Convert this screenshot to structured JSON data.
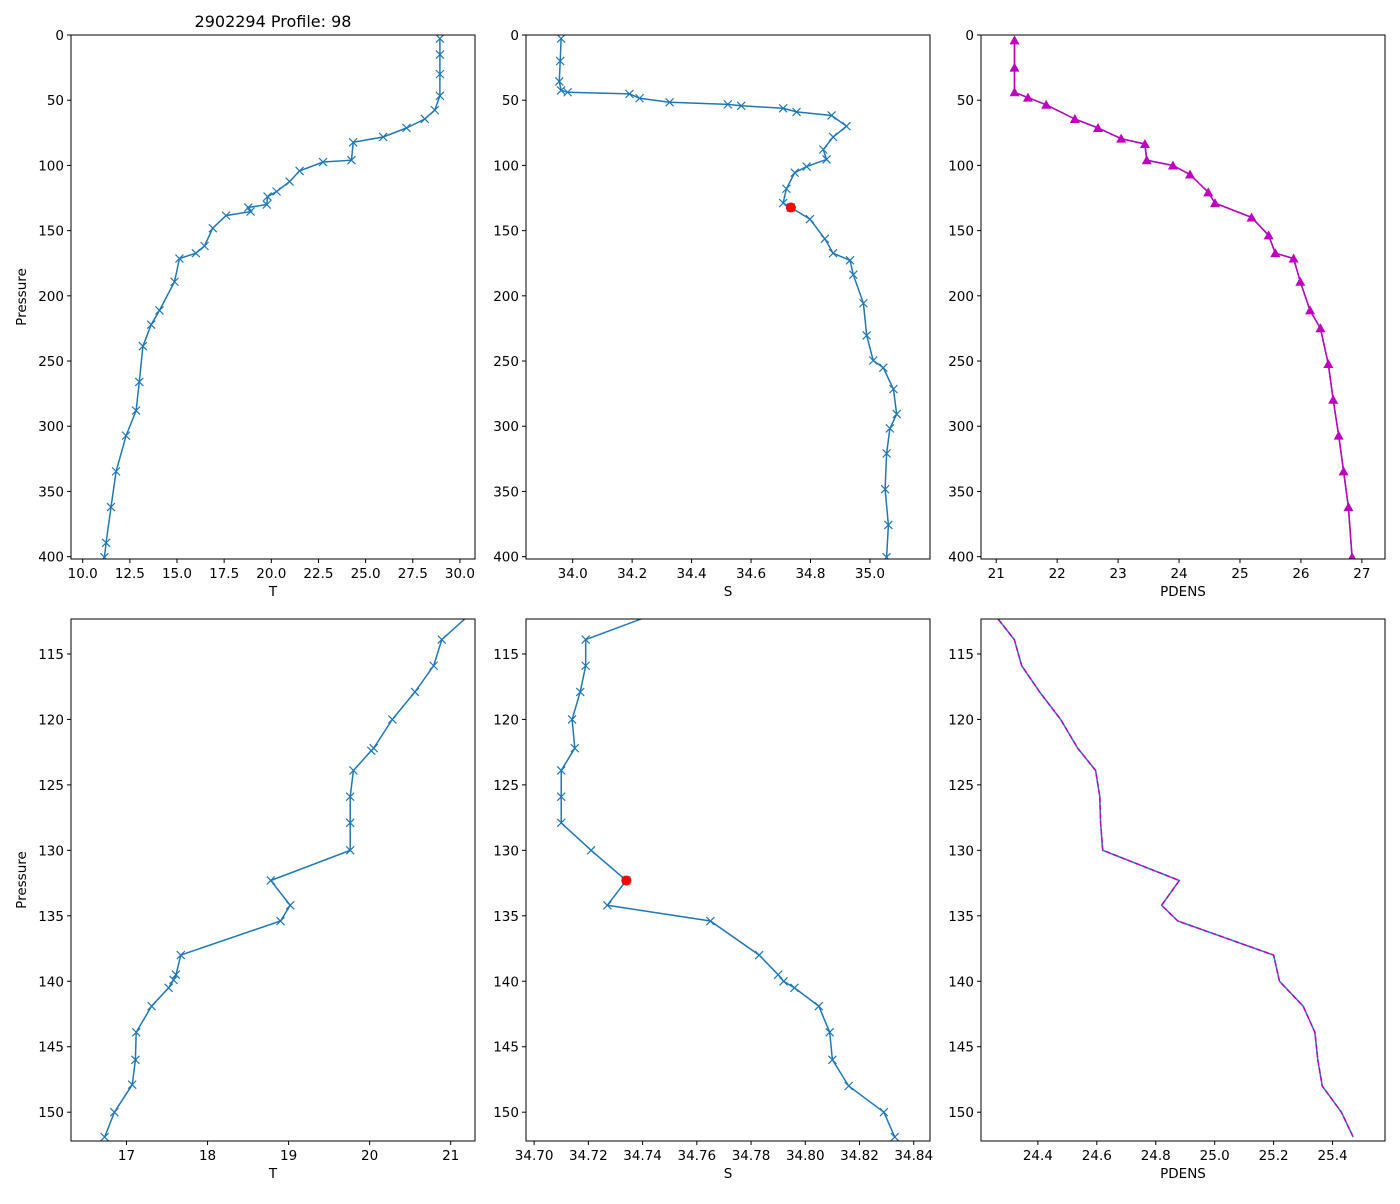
{
  "figure_title": "2902294 Profile: 98",
  "chart_data": [
    {
      "type": "line",
      "title": "2902294 Profile: 98",
      "xlabel": "T",
      "ylabel": "Pressure",
      "xlim": [
        9.38,
        30.8
      ],
      "ylim": [
        0,
        401.8
      ],
      "y_inverted": true,
      "xticks": [
        10,
        12.5,
        15,
        17.5,
        20,
        22.5,
        25,
        27.5,
        30
      ],
      "xtick_labels": [
        "10.0",
        "12.5",
        "15.0",
        "17.5",
        "20.0",
        "22.5",
        "25.0",
        "27.5",
        "30.0"
      ],
      "yticks": [
        0,
        50,
        100,
        150,
        200,
        250,
        300,
        350,
        400
      ],
      "ytick_labels": [
        "0",
        "50",
        "100",
        "150",
        "200",
        "250",
        "300",
        "350",
        "400"
      ],
      "series": [
        {
          "name": "T",
          "color": "#1f77b4",
          "marker": "x",
          "linestyle": "solid",
          "x": [
            28.94,
            28.94,
            28.94,
            28.94,
            28.67,
            28.14,
            27.17,
            25.93,
            24.34,
            24.25,
            22.74,
            21.5,
            20.97,
            20.28,
            19.8,
            19.76,
            18.78,
            18.9,
            17.6,
            16.9,
            16.46,
            16.0,
            15.13,
            14.87,
            14.07,
            13.63,
            13.19,
            13.0,
            12.83,
            12.3,
            11.77,
            11.5,
            11.24,
            11.15
          ],
          "y": [
            2.7,
            15,
            30,
            46.6,
            57.6,
            64.4,
            71.3,
            78.2,
            82.3,
            96,
            97.4,
            104.2,
            112.4,
            120,
            123.9,
            130,
            132.3,
            135.4,
            138.5,
            148.1,
            161.8,
            167.3,
            171.4,
            189.2,
            211.2,
            222.1,
            238.6,
            266,
            288,
            307.2,
            334.6,
            362,
            389.4,
            400.4
          ]
        }
      ]
    },
    {
      "type": "line",
      "title": "",
      "xlabel": "S",
      "ylabel": "",
      "xlim": [
        33.843,
        35.202
      ],
      "ylim": [
        0,
        401.8
      ],
      "y_inverted": true,
      "xticks": [
        34.0,
        34.2,
        34.4,
        34.6,
        34.8,
        35.0
      ],
      "xtick_labels": [
        "34.0",
        "34.2",
        "34.4",
        "34.6",
        "34.8",
        "35.0"
      ],
      "yticks": [
        0,
        50,
        100,
        150,
        200,
        250,
        300,
        350,
        400
      ],
      "ytick_labels": [
        "0",
        "50",
        "100",
        "150",
        "200",
        "250",
        "300",
        "350",
        "400"
      ],
      "series": [
        {
          "name": "S",
          "color": "#1f77b4",
          "marker": "x",
          "linestyle": "solid",
          "x": [
            33.961,
            33.958,
            33.955,
            33.961,
            33.983,
            34.191,
            34.225,
            34.326,
            34.522,
            34.567,
            34.708,
            34.753,
            34.871,
            34.921,
            34.876,
            34.843,
            34.854,
            34.787,
            34.747,
            34.719,
            34.708,
            34.734,
            34.798,
            34.848,
            34.876,
            34.933,
            34.944,
            34.978,
            34.989,
            35.011,
            35.045,
            35.079,
            35.09,
            35.067,
            35.056,
            35.051,
            35.062,
            35.056
          ],
          "y": [
            2.7,
            20,
            35.6,
            42.5,
            43.9,
            45.2,
            48.5,
            51.6,
            53.2,
            54.3,
            56.2,
            59,
            61.7,
            69.9,
            78.2,
            87.8,
            95.4,
            100.9,
            105.6,
            117.9,
            128.9,
            132.3,
            141.2,
            156.3,
            167.3,
            172.8,
            183.8,
            205.7,
            230.4,
            249.6,
            255.1,
            271.5,
            290.7,
            301.7,
            320.9,
            348.3,
            375.7,
            400.4
          ]
        }
      ],
      "highlight": {
        "x": 34.734,
        "y": 132.3,
        "color": "#ff0000"
      }
    },
    {
      "type": "line",
      "title": "",
      "xlabel": "PDENS",
      "ylabel": "",
      "xlim": [
        20.75,
        27.38
      ],
      "ylim": [
        0,
        401.8
      ],
      "y_inverted": true,
      "xticks": [
        21,
        22,
        23,
        24,
        25,
        26,
        27
      ],
      "xtick_labels": [
        "21",
        "22",
        "23",
        "24",
        "25",
        "26",
        "27"
      ],
      "yticks": [
        0,
        50,
        100,
        150,
        200,
        250,
        300,
        350,
        400
      ],
      "ytick_labels": [
        "0",
        "50",
        "100",
        "150",
        "200",
        "250",
        "300",
        "350",
        "400"
      ],
      "series": [
        {
          "name": "PDENS",
          "color": "#1f77b4",
          "marker": "none",
          "linestyle": "solid",
          "x": [
            21.3,
            21.3,
            21.3,
            21.52,
            21.82,
            22.29,
            22.67,
            23.05,
            23.44,
            23.47,
            23.9,
            24.18,
            24.48,
            24.59,
            25.19,
            25.47,
            25.58,
            25.88,
            25.99,
            26.15,
            26.32,
            26.45,
            26.53,
            26.62,
            26.7,
            26.78,
            26.84
          ],
          "y": [
            4.1,
            25,
            43.9,
            48,
            53.5,
            64.4,
            71.3,
            79.5,
            83.6,
            96,
            100.1,
            107,
            120.7,
            128.9,
            139.9,
            153.6,
            167.3,
            171.4,
            189.2,
            211.2,
            224.9,
            252.3,
            279.7,
            307.2,
            334.6,
            362,
            400.4
          ]
        },
        {
          "name": "PDENS markers",
          "color": "#bf00bf",
          "marker": "^",
          "linestyle": "solid",
          "x": [
            21.3,
            21.3,
            21.3,
            21.52,
            21.82,
            22.29,
            22.67,
            23.05,
            23.44,
            23.47,
            23.9,
            24.18,
            24.48,
            24.59,
            25.19,
            25.47,
            25.58,
            25.88,
            25.99,
            26.15,
            26.32,
            26.45,
            26.53,
            26.62,
            26.7,
            26.78,
            26.84
          ],
          "y": [
            4.1,
            25,
            43.9,
            48,
            53.5,
            64.4,
            71.3,
            79.5,
            83.6,
            96,
            100.1,
            107,
            120.7,
            128.9,
            139.9,
            153.6,
            167.3,
            171.4,
            189.2,
            211.2,
            224.9,
            252.3,
            279.7,
            307.2,
            334.6,
            362,
            400.4
          ]
        }
      ]
    },
    {
      "type": "line",
      "title": "",
      "xlabel": "T",
      "ylabel": "Pressure",
      "xlim": [
        16.315,
        21.3
      ],
      "ylim": [
        112.33,
        152.2
      ],
      "y_inverted": true,
      "xticks": [
        17,
        18,
        19,
        20,
        21
      ],
      "xtick_labels": [
        "17",
        "18",
        "19",
        "20",
        "21"
      ],
      "yticks": [
        115,
        120,
        125,
        130,
        135,
        140,
        145,
        150
      ],
      "ytick_labels": [
        "115",
        "120",
        "125",
        "130",
        "135",
        "140",
        "145",
        "150"
      ],
      "series": [
        {
          "name": "T",
          "color": "#1f77b4",
          "marker": "x",
          "linestyle": "solid",
          "x": [
            21.25,
            20.89,
            20.79,
            20.56,
            20.28,
            20.05,
            20.02,
            19.8,
            19.76,
            19.76,
            19.76,
            18.78,
            19.02,
            18.9,
            17.67,
            17.61,
            17.58,
            17.52,
            17.31,
            17.12,
            17.11,
            17.07,
            16.85,
            16.73
          ],
          "y": [
            111.9,
            113.9,
            115.9,
            117.9,
            120,
            122.2,
            122.4,
            123.9,
            125.9,
            127.9,
            130,
            132.3,
            134.2,
            135.4,
            138,
            139.5,
            139.9,
            140.5,
            141.9,
            143.9,
            146,
            147.9,
            150,
            151.9
          ]
        }
      ]
    },
    {
      "type": "line",
      "title": "",
      "xlabel": "S",
      "ylabel": "",
      "xlim": [
        34.697,
        34.846
      ],
      "ylim": [
        112.33,
        152.2
      ],
      "y_inverted": true,
      "xticks": [
        34.7,
        34.72,
        34.74,
        34.76,
        34.78,
        34.8,
        34.82,
        34.84
      ],
      "xtick_labels": [
        "34.70",
        "34.72",
        "34.74",
        "34.76",
        "34.78",
        "34.80",
        "34.82",
        "34.84"
      ],
      "yticks": [
        115,
        120,
        125,
        130,
        135,
        140,
        145,
        150
      ],
      "ytick_labels": [
        "115",
        "120",
        "125",
        "130",
        "135",
        "140",
        "145",
        "150"
      ],
      "series": [
        {
          "name": "S",
          "color": "#1f77b4",
          "marker": "x",
          "linestyle": "solid",
          "x": [
            34.745,
            34.719,
            34.719,
            34.717,
            34.714,
            34.715,
            34.71,
            34.71,
            34.71,
            34.721,
            34.734,
            34.727,
            34.765,
            34.783,
            34.79,
            34.792,
            34.796,
            34.805,
            34.809,
            34.81,
            34.816,
            34.829,
            34.833
          ],
          "y": [
            111.9,
            113.9,
            115.9,
            117.9,
            120,
            122.2,
            123.9,
            125.9,
            127.9,
            130,
            132.3,
            134.2,
            135.4,
            138,
            139.5,
            140,
            140.5,
            141.9,
            143.9,
            146,
            148,
            150,
            151.9
          ]
        }
      ],
      "highlight": {
        "x": 34.734,
        "y": 132.3,
        "color": "#ff0000"
      }
    },
    {
      "type": "line",
      "title": "",
      "xlabel": "PDENS",
      "ylabel": "",
      "xlim": [
        24.207,
        25.578
      ],
      "ylim": [
        112.33,
        152.2
      ],
      "y_inverted": true,
      "xticks": [
        24.4,
        24.6,
        24.8,
        25.0,
        25.2,
        25.4
      ],
      "xtick_labels": [
        "24.4",
        "24.6",
        "24.8",
        "25.0",
        "25.2",
        "25.4"
      ],
      "yticks": [
        115,
        120,
        125,
        130,
        135,
        140,
        145,
        150
      ],
      "ytick_labels": [
        "115",
        "120",
        "125",
        "130",
        "135",
        "140",
        "145",
        "150"
      ],
      "series": [
        {
          "name": "PDENS",
          "color": "#1f77b4",
          "marker": "none",
          "linestyle": "solid",
          "x": [
            24.25,
            24.32,
            24.345,
            24.406,
            24.477,
            24.535,
            24.596,
            24.61,
            24.613,
            24.62,
            24.88,
            24.82,
            24.875,
            25.2,
            25.22,
            25.3,
            25.34,
            25.35,
            25.365,
            25.43,
            25.47
          ],
          "y": [
            111.9,
            113.9,
            115.9,
            117.9,
            120,
            122.2,
            123.9,
            125.9,
            127.9,
            130,
            132.3,
            134.2,
            135.4,
            138,
            140,
            141.9,
            143.9,
            146,
            148,
            150,
            151.9
          ]
        },
        {
          "name": "PDENS dashed",
          "color": "#bf00bf",
          "marker": "none",
          "linestyle": "dashed",
          "x": [
            24.25,
            24.32,
            24.345,
            24.406,
            24.477,
            24.535,
            24.596,
            24.61,
            24.613,
            24.62,
            24.88,
            24.82,
            24.875,
            25.2,
            25.22,
            25.3,
            25.34,
            25.35,
            25.365,
            25.43,
            25.47
          ],
          "y": [
            111.9,
            113.9,
            115.9,
            117.9,
            120,
            122.2,
            123.9,
            125.9,
            127.9,
            130,
            132.3,
            134.2,
            135.4,
            138,
            140,
            141.9,
            143.9,
            146,
            148,
            150,
            151.9
          ]
        }
      ]
    }
  ]
}
